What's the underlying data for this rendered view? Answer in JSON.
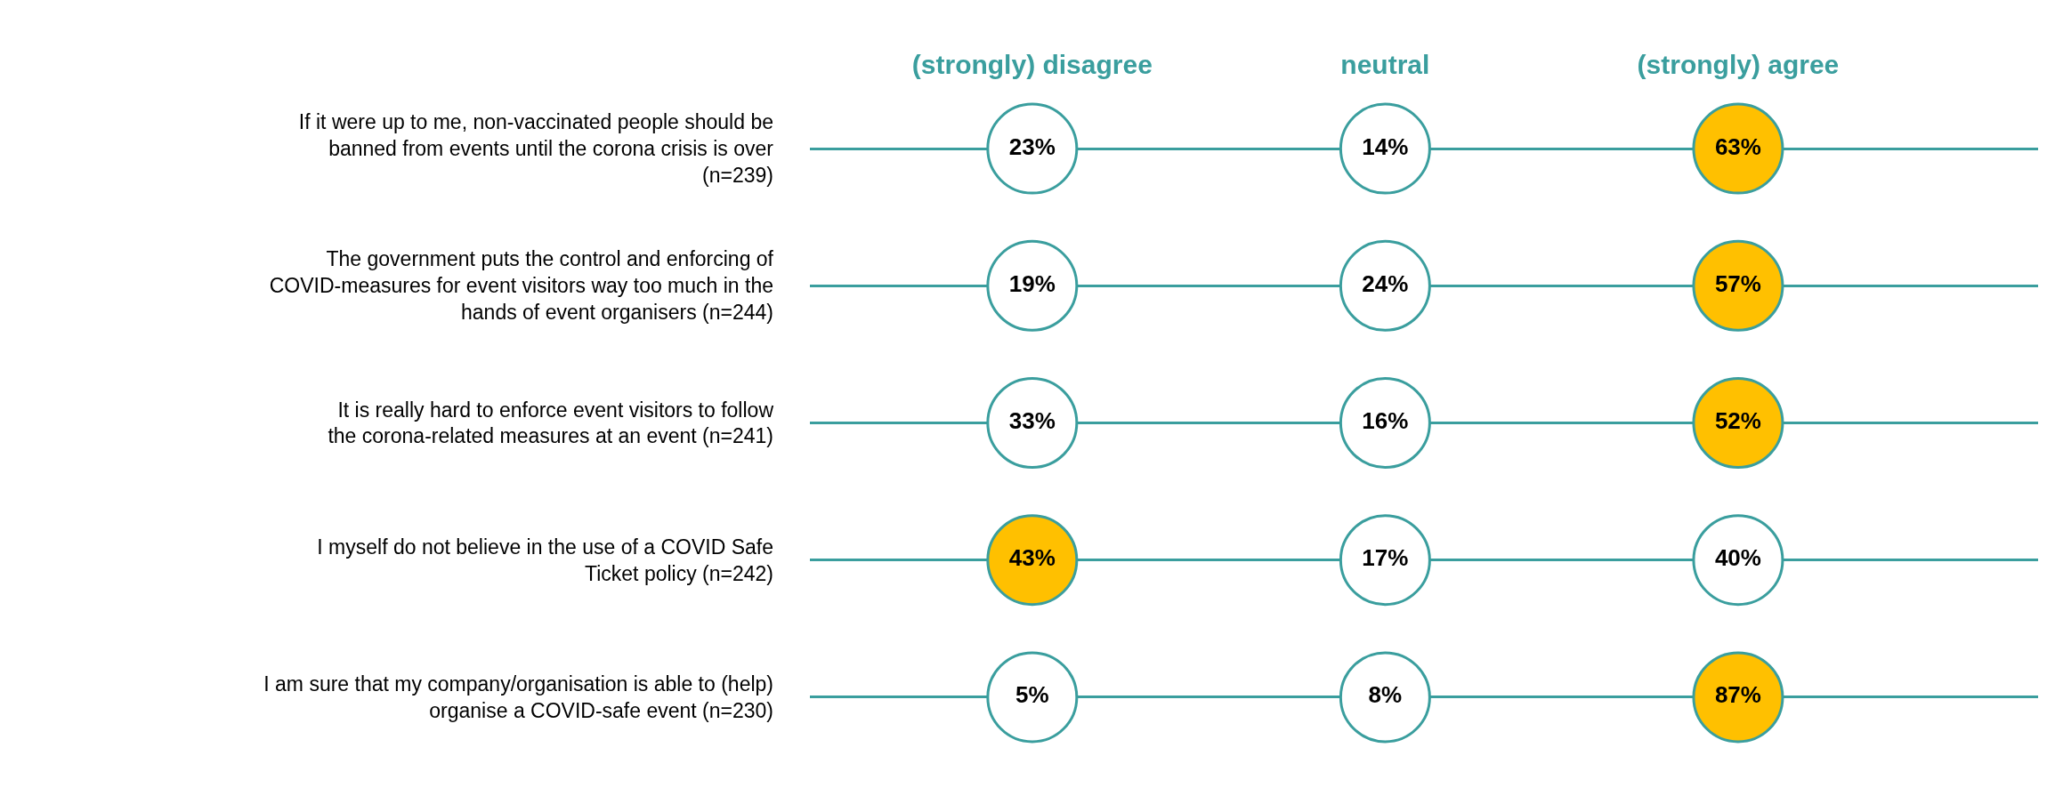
{
  "chart_data": {
    "type": "heatmap",
    "categories": [
      "(strongly) disagree",
      "neutral",
      "(strongly) agree"
    ],
    "y_categories": [
      "If it were up to me, non-vaccinated people should be banned from events until the corona crisis is over (n=239)",
      "The government puts the control and enforcing of COVID-measures for event visitors way too much in the hands of event organisers (n=244)",
      "It is really hard to enforce event visitors to follow the corona-related measures at an event (n=241)",
      "I myself do not believe in the use of a COVID Safe Ticket policy (n=242)",
      "I am sure that my company/organisation is able to (help) organise a COVID-safe event (n=230)"
    ],
    "cells": [
      [
        23,
        14,
        63
      ],
      [
        19,
        24,
        57
      ],
      [
        33,
        16,
        52
      ],
      [
        43,
        17,
        40
      ],
      [
        5,
        8,
        87
      ]
    ],
    "colors": [
      [
        "#ffffff",
        "#ffffff",
        "#ffc000"
      ],
      [
        "#ffffff",
        "#ffffff",
        "#ffc000"
      ],
      [
        "#ffffff",
        "#ffffff",
        "#ffc000"
      ],
      [
        "#ffc000",
        "#ffffff",
        "#ffffff"
      ],
      [
        "#ffffff",
        "#ffffff",
        "#ffc000"
      ]
    ],
    "cell_labels": [
      [
        "23%",
        "14%",
        "63%"
      ],
      [
        "19%",
        "24%",
        "57%"
      ],
      [
        "33%",
        "16%",
        "52%"
      ],
      [
        "43%",
        "17%",
        "40%"
      ],
      [
        "5%",
        "8%",
        "87%"
      ]
    ],
    "data_labels": true,
    "grid": "y"
  }
}
